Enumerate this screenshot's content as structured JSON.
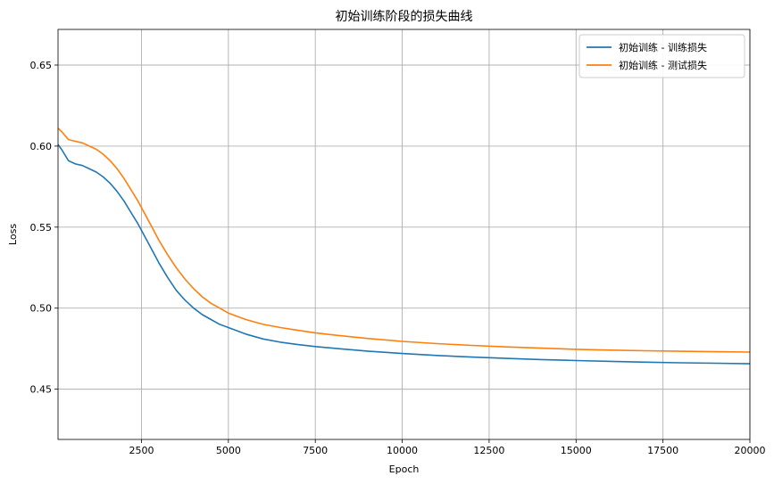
{
  "chart_data": {
    "type": "line",
    "title": "初始训练阶段的损失曲线",
    "xlabel": "Epoch",
    "ylabel": "Loss",
    "xlim": [
      100,
      20000
    ],
    "ylim": [
      0.419,
      0.672
    ],
    "xticks": [
      2500,
      5000,
      7500,
      10000,
      12500,
      15000,
      17500,
      20000
    ],
    "yticks": [
      0.45,
      0.5,
      0.55,
      0.6,
      0.65
    ],
    "xtick_labels": [
      "2500",
      "5000",
      "7500",
      "10000",
      "12500",
      "15000",
      "17500",
      "20000"
    ],
    "ytick_labels": [
      "0.45",
      "0.50",
      "0.55",
      "0.60",
      "0.65"
    ],
    "grid": true,
    "legend_position": "top-right",
    "series": [
      {
        "name": "初始训练 - 训练损失",
        "color": "#1f77b4",
        "x": [
          100,
          200,
          400,
          600,
          800,
          1000,
          1200,
          1400,
          1600,
          1800,
          2000,
          2200,
          2400,
          2600,
          2800,
          3000,
          3250,
          3500,
          3750,
          4000,
          4250,
          4500,
          4750,
          5000,
          5500,
          6000,
          6500,
          7000,
          7500,
          8000,
          9000,
          10000,
          11000,
          12000,
          13000,
          14000,
          15000,
          16000,
          17000,
          18000,
          19000,
          20000
        ],
        "values": [
          0.601,
          0.598,
          0.591,
          0.589,
          0.588,
          0.586,
          0.584,
          0.581,
          0.577,
          0.572,
          0.566,
          0.559,
          0.552,
          0.544,
          0.536,
          0.528,
          0.519,
          0.511,
          0.505,
          0.5,
          0.496,
          0.493,
          0.49,
          0.488,
          0.484,
          0.481,
          0.479,
          0.4775,
          0.4763,
          0.4753,
          0.4735,
          0.472,
          0.4708,
          0.4698,
          0.469,
          0.4683,
          0.4677,
          0.4672,
          0.4667,
          0.4663,
          0.466,
          0.4657
        ]
      },
      {
        "name": "初始训练 - 测试损失",
        "color": "#ff7f0e",
        "x": [
          100,
          200,
          400,
          600,
          800,
          1000,
          1200,
          1400,
          1600,
          1800,
          2000,
          2200,
          2400,
          2600,
          2800,
          3000,
          3250,
          3500,
          3750,
          4000,
          4250,
          4500,
          4750,
          5000,
          5500,
          6000,
          6500,
          7000,
          7500,
          8000,
          9000,
          10000,
          11000,
          12000,
          13000,
          14000,
          15000,
          16000,
          17000,
          18000,
          19000,
          20000
        ],
        "values": [
          0.611,
          0.609,
          0.604,
          0.603,
          0.602,
          0.6,
          0.598,
          0.595,
          0.591,
          0.586,
          0.58,
          0.573,
          0.566,
          0.558,
          0.55,
          0.542,
          0.533,
          0.525,
          0.518,
          0.512,
          0.507,
          0.503,
          0.5,
          0.497,
          0.493,
          0.49,
          0.488,
          0.4863,
          0.4848,
          0.4835,
          0.4813,
          0.4795,
          0.4781,
          0.477,
          0.4761,
          0.4753,
          0.4746,
          0.4741,
          0.4737,
          0.4734,
          0.4731,
          0.4729
        ]
      }
    ]
  }
}
